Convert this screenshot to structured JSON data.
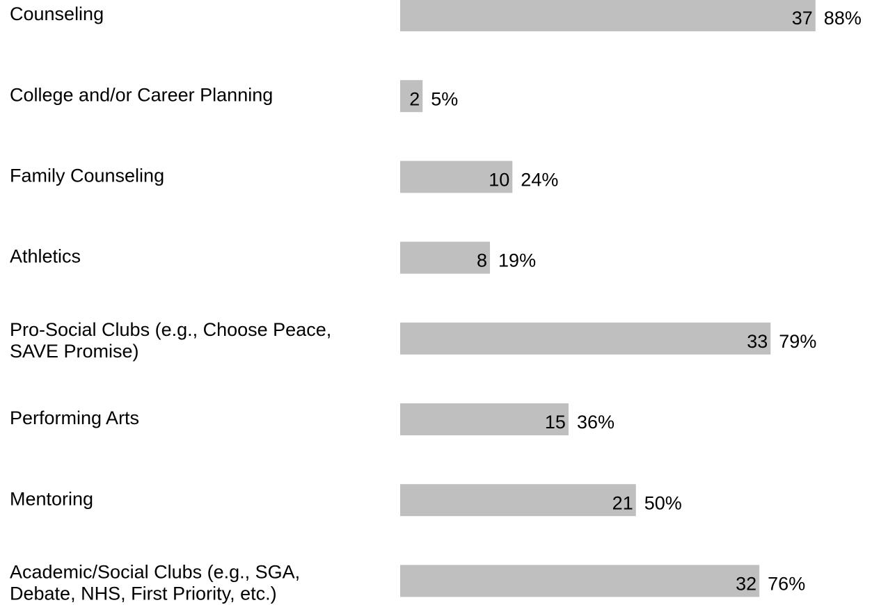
{
  "chart_data": {
    "type": "bar",
    "orientation": "horizontal",
    "color": "#bfbfbf",
    "categories": [
      "Counseling",
      "College and/or Career Planning",
      "Family Counseling",
      "Athletics",
      [
        "Pro-Social Clubs (e.g., Choose Peace,",
        "SAVE Promise)"
      ],
      "Performing Arts",
      "Mentoring",
      [
        "Academic/Social Clubs (e.g., SGA,",
        "Debate, NHS, First Priority, etc.)"
      ]
    ],
    "values": [
      37,
      2,
      10,
      8,
      33,
      15,
      21,
      32
    ],
    "share_labels": [
      "88%",
      "5%",
      "24%",
      "19%",
      "79%",
      "36%",
      "50%",
      "76%"
    ]
  }
}
